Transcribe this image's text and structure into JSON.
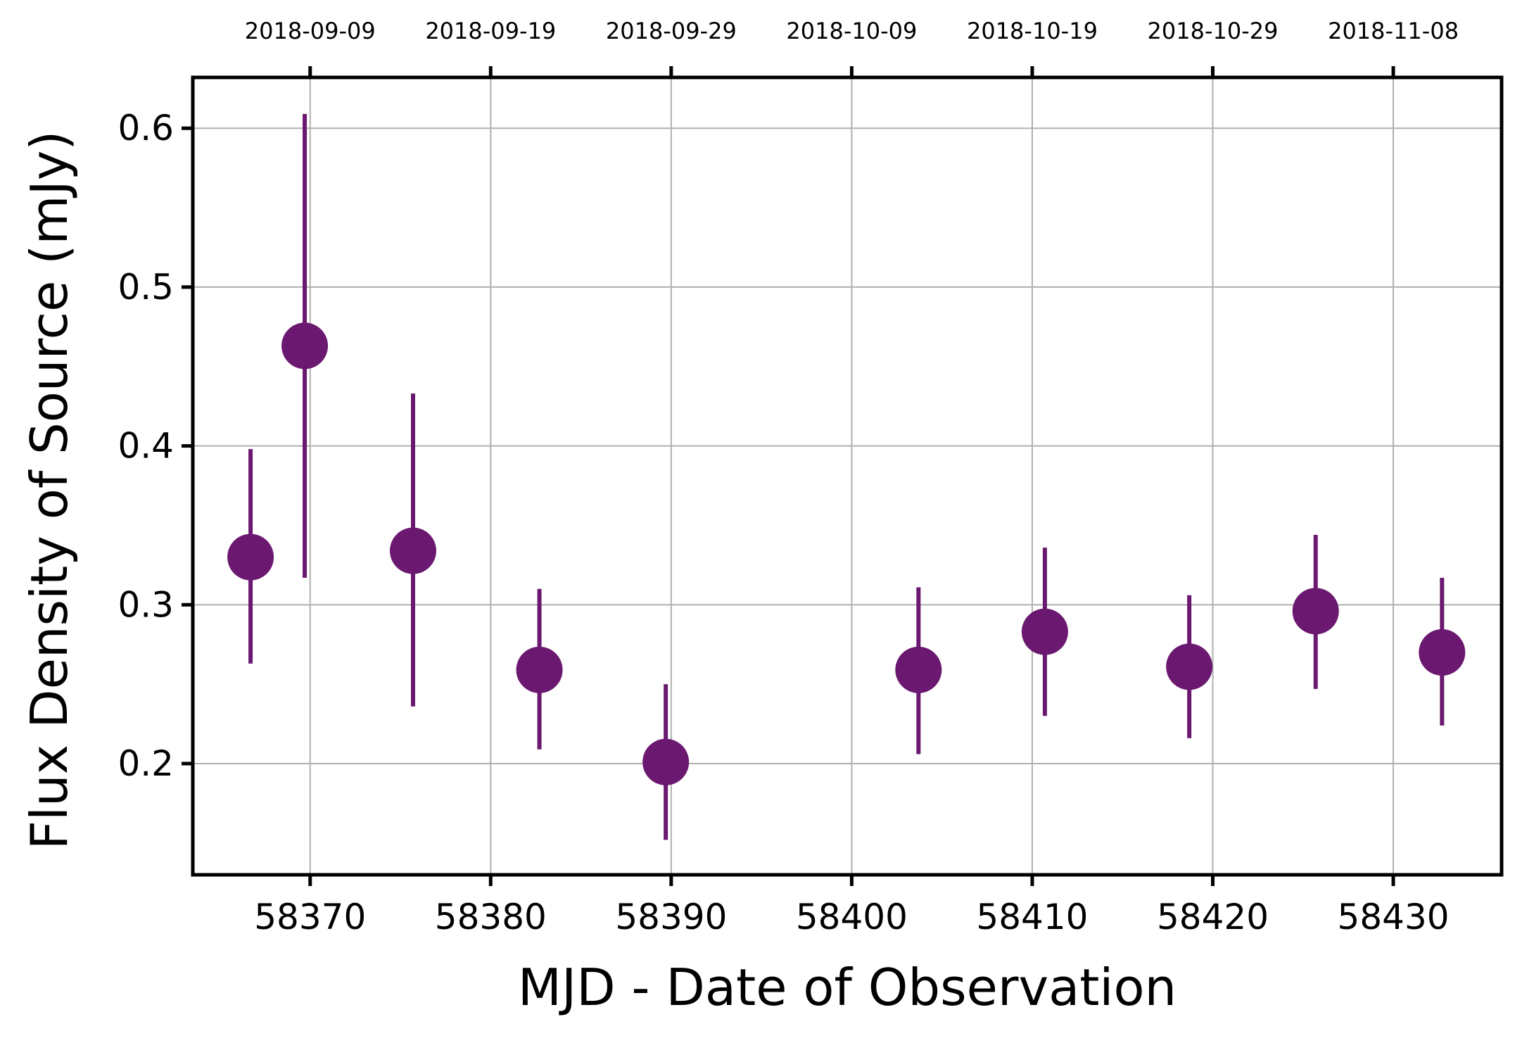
{
  "chart_data": {
    "type": "scatter",
    "xlabel": "MJD - Date of Observation",
    "ylabel": "Flux Density of Source (mJy)",
    "xlim": [
      58363.5,
      58436.0
    ],
    "ylim": [
      0.13,
      0.632
    ],
    "grid": true,
    "x_ticks": [
      58370,
      58380,
      58390,
      58400,
      58410,
      58420,
      58430
    ],
    "y_ticks": [
      0.2,
      0.3,
      0.4,
      0.5,
      0.6
    ],
    "top_axis": {
      "ticks": [
        58370,
        58380,
        58390,
        58400,
        58410,
        58420,
        58430
      ],
      "labels": [
        "2018-09-09",
        "2018-09-19",
        "2018-09-29",
        "2018-10-09",
        "2018-10-19",
        "2018-10-29",
        "2018-11-08"
      ]
    },
    "marker_color": "#6a1870",
    "points": [
      {
        "x": 58366.7,
        "y": 0.33,
        "yerr_low": 0.263,
        "yerr_high": 0.398
      },
      {
        "x": 58369.7,
        "y": 0.463,
        "yerr_low": 0.317,
        "yerr_high": 0.609
      },
      {
        "x": 58375.7,
        "y": 0.334,
        "yerr_low": 0.236,
        "yerr_high": 0.433
      },
      {
        "x": 58382.7,
        "y": 0.259,
        "yerr_low": 0.209,
        "yerr_high": 0.31
      },
      {
        "x": 58389.7,
        "y": 0.201,
        "yerr_low": 0.152,
        "yerr_high": 0.25
      },
      {
        "x": 58403.7,
        "y": 0.259,
        "yerr_low": 0.206,
        "yerr_high": 0.311
      },
      {
        "x": 58410.7,
        "y": 0.283,
        "yerr_low": 0.23,
        "yerr_high": 0.336
      },
      {
        "x": 58418.7,
        "y": 0.261,
        "yerr_low": 0.216,
        "yerr_high": 0.306
      },
      {
        "x": 58425.7,
        "y": 0.296,
        "yerr_low": 0.247,
        "yerr_high": 0.344
      },
      {
        "x": 58432.7,
        "y": 0.27,
        "yerr_low": 0.224,
        "yerr_high": 0.317
      }
    ]
  }
}
